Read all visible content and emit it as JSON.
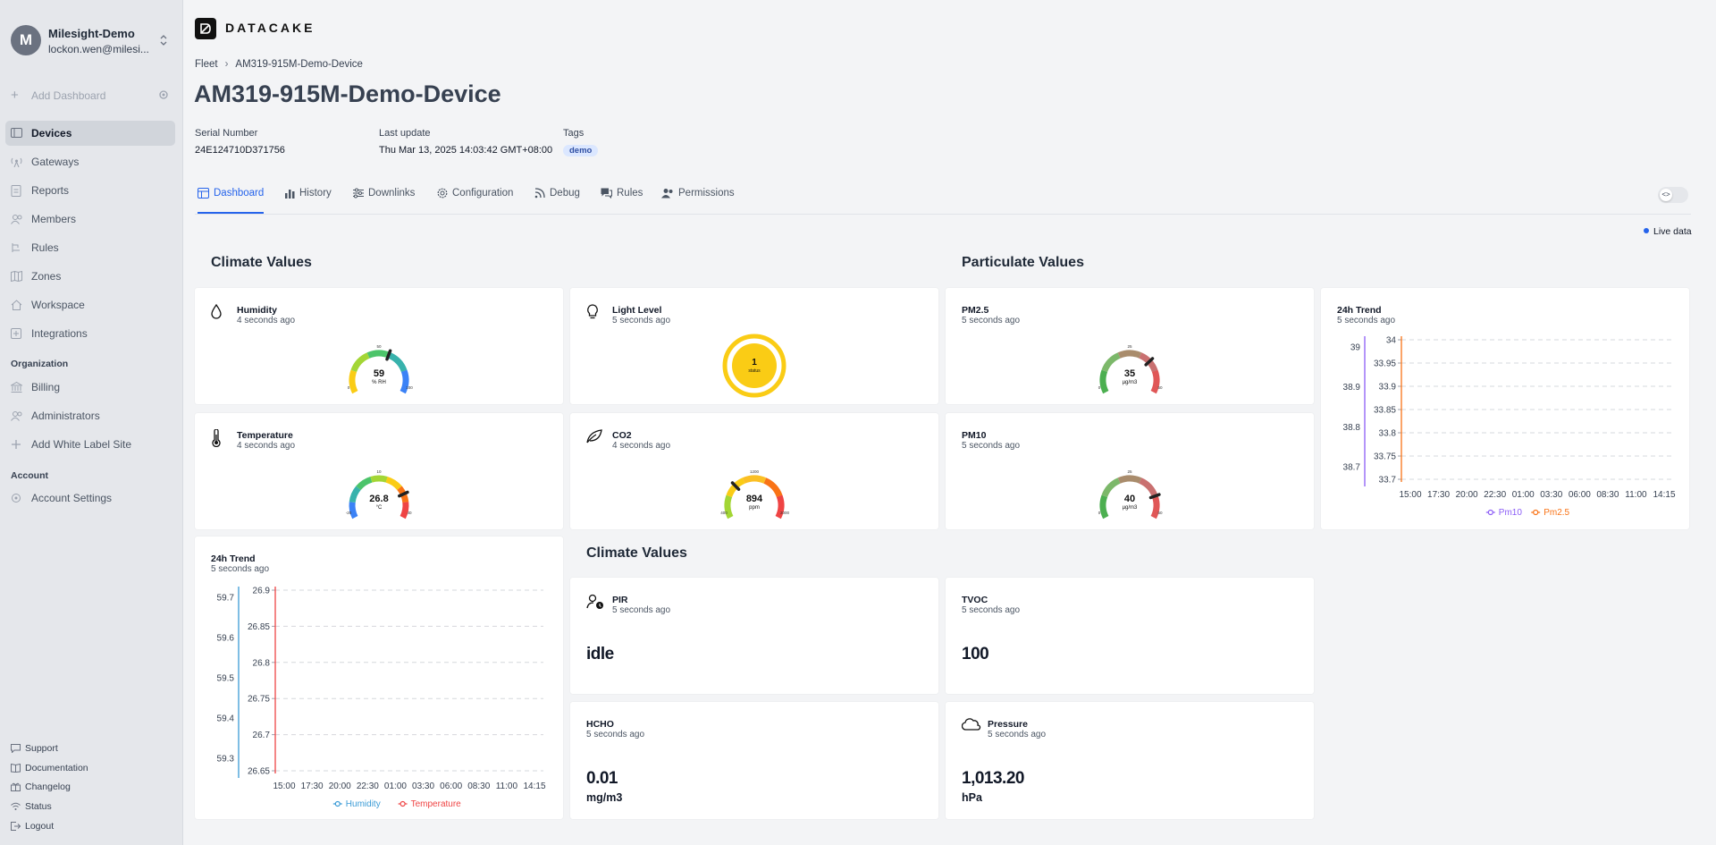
{
  "org": {
    "initial": "M",
    "name": "Milesight-Demo",
    "email": "lockon.wen@milesi..."
  },
  "sidebar": {
    "add_dashboard": "Add Dashboard",
    "items": [
      {
        "label": "Devices",
        "icon": "devices-icon"
      },
      {
        "label": "Gateways",
        "icon": "gateway-icon"
      },
      {
        "label": "Reports",
        "icon": "report-icon"
      },
      {
        "label": "Members",
        "icon": "members-icon"
      },
      {
        "label": "Rules",
        "icon": "rules-icon"
      },
      {
        "label": "Zones",
        "icon": "zones-icon"
      },
      {
        "label": "Workspace",
        "icon": "workspace-icon"
      },
      {
        "label": "Integrations",
        "icon": "integrations-icon"
      }
    ],
    "organization_heading": "Organization",
    "org_items": [
      {
        "label": "Billing",
        "icon": "billing-icon"
      },
      {
        "label": "Administrators",
        "icon": "administrators-icon"
      },
      {
        "label": "Add White Label Site",
        "icon": "plus-icon"
      }
    ],
    "account_heading": "Account",
    "account_items": [
      {
        "label": "Account Settings",
        "icon": "gear-icon"
      }
    ],
    "footer": [
      {
        "label": "Support",
        "icon": "support-icon"
      },
      {
        "label": "Documentation",
        "icon": "book-icon"
      },
      {
        "label": "Changelog",
        "icon": "gift-icon"
      },
      {
        "label": "Status",
        "icon": "wifi-icon"
      },
      {
        "label": "Logout",
        "icon": "logout-icon"
      }
    ]
  },
  "brand": "DATACAKE",
  "breadcrumb": {
    "root": "Fleet",
    "current": "AM319-915M-Demo-Device"
  },
  "device": {
    "title": "AM319-915M-Demo-Device",
    "serial_label": "Serial Number",
    "serial": "24E124710D371756",
    "update_label": "Last update",
    "update": "Thu Mar 13, 2025 14:03:42 GMT+08:00",
    "tags_label": "Tags",
    "tag": "demo"
  },
  "tabs": [
    "Dashboard",
    "History",
    "Downlinks",
    "Configuration",
    "Debug",
    "Rules",
    "Permissions"
  ],
  "toggle_glyph": "<>",
  "live_data": "Live data",
  "sections": {
    "climate": "Climate Values",
    "particulate": "Particulate Values",
    "climate2": "Climate Values"
  },
  "widgets": {
    "humidity": {
      "title": "Humidity",
      "ago": "4 seconds ago",
      "value": "59",
      "unit": "% RH",
      "min": "0",
      "max": "100",
      "mid": "50",
      "fraction": 0.59
    },
    "light": {
      "title": "Light Level",
      "ago": "5 seconds ago",
      "value": "1",
      "unit": "status"
    },
    "pm25": {
      "title": "PM2.5",
      "ago": "5 seconds ago",
      "value": "35",
      "unit": "µg/m3",
      "min": "0",
      "max": "50",
      "mid": "25",
      "fraction": 0.7
    },
    "temperature": {
      "title": "Temperature",
      "ago": "4 seconds ago",
      "value": "26.8",
      "unit": "°C",
      "min": "-20",
      "max": "40",
      "mid": "10",
      "fraction": 0.78
    },
    "co2": {
      "title": "CO2",
      "ago": "4 seconds ago",
      "value": "894",
      "unit": "ppm",
      "min": "400",
      "max": "2000",
      "mid": "1200",
      "fraction": 0.31
    },
    "pm10": {
      "title": "PM10",
      "ago": "5 seconds ago",
      "value": "40",
      "unit": "µg/m3",
      "min": "0",
      "max": "50",
      "mid": "25",
      "fraction": 0.8
    },
    "pir": {
      "title": "PIR",
      "ago": "5 seconds ago",
      "value": "idle"
    },
    "tvoc": {
      "title": "TVOC",
      "ago": "5 seconds ago",
      "value": "100"
    },
    "hcho": {
      "title": "HCHO",
      "ago": "5 seconds ago",
      "value": "0.01",
      "unit": "mg/m3"
    },
    "pressure": {
      "title": "Pressure",
      "ago": "5 seconds ago",
      "value": "1,013.20",
      "unit": "hPa"
    }
  },
  "trend_pm": {
    "title": "24h Trend",
    "ago": "5 seconds ago"
  },
  "trend_climate": {
    "title": "24h Trend",
    "ago": "5 seconds ago"
  },
  "chart_data": [
    {
      "type": "line",
      "title": "24h Trend",
      "x": [
        "15:00",
        "17:30",
        "20:00",
        "22:30",
        "01:00",
        "03:30",
        "06:00",
        "08:30",
        "11:00",
        "14:15"
      ],
      "y_left_ticks": [
        "39",
        "38.9",
        "38.8",
        "38.7"
      ],
      "y_right_ticks": [
        "34",
        "33.95",
        "33.9",
        "33.85",
        "33.8",
        "33.75",
        "33.7"
      ],
      "series": [
        {
          "name": "Pm10",
          "color": "#8b5cf6",
          "axis": "left"
        },
        {
          "name": "Pm2.5",
          "color": "#f97316",
          "axis": "right"
        }
      ]
    },
    {
      "type": "line",
      "title": "24h Trend",
      "x": [
        "15:00",
        "17:30",
        "20:00",
        "22:30",
        "01:00",
        "03:30",
        "06:00",
        "08:30",
        "11:00",
        "14:15"
      ],
      "y_left_ticks": [
        "59.7",
        "59.6",
        "59.5",
        "59.4",
        "59.3"
      ],
      "y_right_ticks": [
        "26.9",
        "26.85",
        "26.8",
        "26.75",
        "26.7",
        "26.65"
      ],
      "series": [
        {
          "name": "Humidity",
          "color": "#3b9bd6",
          "axis": "left"
        },
        {
          "name": "Temperature",
          "color": "#ef4444",
          "axis": "right"
        }
      ]
    }
  ]
}
